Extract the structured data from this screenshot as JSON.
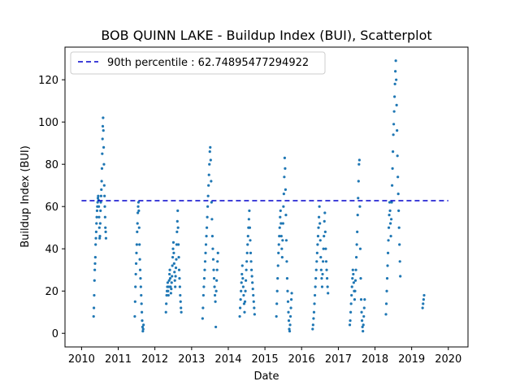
{
  "chart_data": {
    "type": "scatter",
    "title": "BOB QUINN LAKE - Buildup Index (BUI), Scatterplot",
    "xlabel": "Date",
    "ylabel": "Buildup Index (BUI)",
    "xlim": [
      "2009-07-20",
      "2020-07-15"
    ],
    "ylim": [
      -6.45,
      135.45
    ],
    "x_ticks": [
      "2010",
      "2011",
      "2012",
      "2013",
      "2014",
      "2015",
      "2016",
      "2017",
      "2018",
      "2019",
      "2020"
    ],
    "y_ticks": [
      0,
      20,
      40,
      60,
      80,
      100,
      120
    ],
    "grid": false,
    "legend_position": "top-left",
    "percentile_line": {
      "label": "90th percentile : 62.74895477294922",
      "value": 62.74895477294922,
      "x_range": [
        "2010-01-01",
        "2020-01-01"
      ]
    },
    "colors": {
      "points": "#1f77b4",
      "percentile": "#0000cc"
    },
    "series_seasons": [
      {
        "start": "2010-05-01",
        "end": "2010-09-01",
        "values": [
          8,
          12,
          18,
          25,
          30,
          33,
          36,
          42,
          45,
          48,
          52,
          55,
          58,
          60,
          62,
          64,
          65,
          63,
          60,
          55,
          50,
          45,
          46,
          52,
          58,
          62,
          65,
          68,
          72,
          78,
          85,
          92,
          98,
          102,
          96,
          88,
          80,
          70,
          65,
          60,
          55,
          50,
          48,
          45
        ]
      },
      {
        "start": "2011-06-15",
        "end": "2011-09-10",
        "values": [
          8,
          15,
          22,
          28,
          33,
          38,
          42,
          48,
          52,
          57,
          60,
          62,
          58,
          50,
          42,
          35,
          30,
          26,
          22,
          18,
          14,
          10,
          6,
          3,
          1,
          2,
          4
        ]
      },
      {
        "start": "2012-04-20",
        "end": "2012-09-20",
        "values": [
          10,
          14,
          18,
          20,
          22,
          24,
          20,
          18,
          22,
          25,
          28,
          30,
          26,
          22,
          19,
          21,
          24,
          27,
          32,
          36,
          40,
          43,
          38,
          33,
          29,
          25,
          22,
          27,
          31,
          35,
          42,
          48,
          53,
          58,
          50,
          42,
          36,
          30,
          26,
          22,
          18,
          15,
          12,
          10
        ]
      },
      {
        "start": "2013-04-20",
        "end": "2013-09-20",
        "values": [
          7,
          12,
          18,
          22,
          26,
          30,
          34,
          38,
          42,
          46,
          50,
          55,
          60,
          65,
          70,
          75,
          80,
          86,
          88,
          82,
          72,
          62,
          54,
          46,
          40,
          35,
          30,
          26,
          22,
          18,
          15,
          3,
          20,
          25,
          30,
          34,
          38
        ]
      },
      {
        "start": "2014-04-25",
        "end": "2014-09-20",
        "values": [
          8,
          12,
          16,
          20,
          24,
          28,
          32,
          26,
          22,
          18,
          14,
          10,
          15,
          20,
          25,
          30,
          34,
          38,
          42,
          46,
          50,
          54,
          58,
          50,
          44,
          38,
          34,
          30,
          27,
          24,
          21,
          18,
          15,
          12,
          9
        ]
      },
      {
        "start": "2015-04-25",
        "end": "2015-09-25",
        "values": [
          8,
          14,
          20,
          26,
          32,
          38,
          42,
          46,
          50,
          55,
          58,
          52,
          46,
          40,
          36,
          44,
          52,
          60,
          66,
          74,
          83,
          78,
          68,
          56,
          44,
          34,
          26,
          20,
          15,
          10,
          6,
          2,
          1,
          4,
          8,
          12,
          16,
          19
        ]
      },
      {
        "start": "2016-04-20",
        "end": "2016-09-20",
        "values": [
          2,
          4,
          7,
          10,
          14,
          18,
          22,
          26,
          30,
          34,
          38,
          42,
          46,
          50,
          55,
          60,
          52,
          44,
          36,
          30,
          26,
          22,
          28,
          34,
          40,
          46,
          53,
          57,
          48,
          40,
          34,
          30,
          26,
          22,
          19
        ]
      },
      {
        "start": "2017-04-25",
        "end": "2017-09-20",
        "values": [
          4,
          6,
          10,
          14,
          18,
          22,
          26,
          30,
          28,
          24,
          20,
          16,
          20,
          25,
          30,
          36,
          42,
          48,
          56,
          64,
          72,
          80,
          82,
          60,
          40,
          26,
          16,
          10,
          6,
          3,
          1,
          4,
          8,
          12,
          16
        ]
      },
      {
        "start": "2018-04-20",
        "end": "2018-09-10",
        "values": [
          9,
          14,
          20,
          26,
          32,
          38,
          44,
          50,
          56,
          62,
          58,
          52,
          46,
          54,
          62,
          70,
          78,
          86,
          94,
          99,
          105,
          112,
          118,
          124,
          129,
          120,
          108,
          96,
          84,
          74,
          66,
          58,
          50,
          42,
          34,
          27
        ]
      },
      {
        "start": "2019-04-20",
        "end": "2019-05-05",
        "values": [
          12,
          14,
          16,
          18
        ]
      }
    ]
  }
}
